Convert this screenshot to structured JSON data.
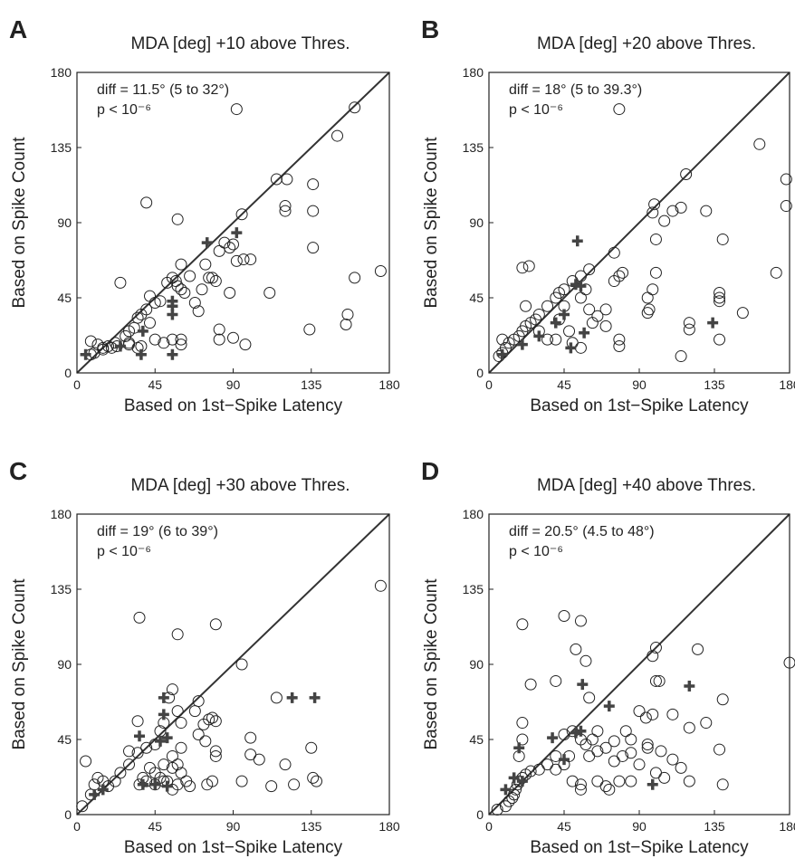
{
  "chart_data": [
    {
      "type": "scatter",
      "panel_label": "A",
      "title": "MDA [deg] +10 above Thres.",
      "x_label": "Based on 1st−Spike Latency",
      "y_label": "Based on Spike Count",
      "annotations": [
        "diff = 11.5° (5 to 32°)",
        "p < 10⁻⁶"
      ],
      "xlim": [
        0,
        180
      ],
      "ylim": [
        0,
        180
      ],
      "xticks": [
        0,
        45,
        90,
        135,
        180
      ],
      "yticks": [
        0,
        45,
        90,
        135,
        180
      ],
      "identity_line": true,
      "series": [
        {
          "marker": "circle",
          "color": "#222222",
          "x": [
            92,
            160,
            150,
            115,
            121,
            136,
            120,
            120,
            136,
            95,
            40,
            58,
            136,
            175,
            111,
            160,
            156,
            155,
            134,
            97,
            82,
            82,
            90,
            60,
            55,
            45,
            60,
            50,
            37,
            35,
            30,
            20,
            18,
            12,
            8,
            8,
            10,
            15,
            22,
            28,
            30,
            33,
            35,
            37,
            40,
            42,
            45,
            48,
            52,
            55,
            57,
            58,
            60,
            60,
            62,
            65,
            68,
            70,
            72,
            74,
            76,
            78,
            80,
            82,
            85,
            88,
            90,
            92,
            96,
            100,
            88,
            25,
            15,
            42,
            30,
            23
          ],
          "y": [
            158,
            159,
            142,
            116,
            116,
            113,
            100,
            97,
            97,
            95,
            102,
            92,
            75,
            61,
            48,
            57,
            35,
            29,
            26,
            17,
            26,
            20,
            21,
            20,
            20,
            20,
            17,
            18,
            16,
            15,
            17,
            15,
            16,
            17,
            19,
            11,
            12,
            14,
            18,
            22,
            25,
            27,
            33,
            35,
            38,
            46,
            42,
            43,
            54,
            57,
            55,
            52,
            65,
            50,
            48,
            58,
            42,
            37,
            50,
            65,
            57,
            57,
            55,
            73,
            78,
            75,
            77,
            67,
            68,
            68,
            48,
            54,
            15,
            30,
            18,
            16
          ]
        },
        {
          "marker": "plus",
          "color": "#444444",
          "x": [
            5,
            37,
            55,
            75,
            92,
            55,
            55,
            55,
            38,
            25
          ],
          "y": [
            11,
            11,
            11,
            78,
            84,
            35,
            40,
            43,
            25,
            16
          ]
        }
      ]
    },
    {
      "type": "scatter",
      "panel_label": "B",
      "title": "MDA [deg] +20 above Thres.",
      "x_label": "Based on 1st−Spike Latency",
      "y_label": "Based on Spike Count",
      "annotations": [
        "diff = 18° (5 to 39.3°)",
        "p < 10⁻⁶"
      ],
      "xlim": [
        0,
        180
      ],
      "ylim": [
        0,
        180
      ],
      "xticks": [
        0,
        45,
        90,
        135,
        180
      ],
      "yticks": [
        0,
        45,
        90,
        135,
        180
      ],
      "identity_line": true,
      "series": [
        {
          "marker": "circle",
          "color": "#222222",
          "x": [
            78,
            162,
            118,
            178,
            178,
            99,
            98,
            105,
            110,
            115,
            130,
            140,
            100,
            75,
            60,
            55,
            50,
            45,
            42,
            40,
            35,
            30,
            28,
            25,
            22,
            20,
            18,
            15,
            12,
            10,
            8,
            6,
            22,
            20,
            24,
            78,
            80,
            75,
            70,
            65,
            60,
            62,
            70,
            78,
            78,
            48,
            40,
            35,
            50,
            55,
            100,
            98,
            95,
            96,
            95,
            120,
            120,
            138,
            138,
            138,
            152,
            115,
            138,
            172,
            8,
            30,
            42,
            45,
            55,
            58
          ],
          "y": [
            158,
            137,
            119,
            116,
            100,
            101,
            96,
            91,
            97,
            99,
            97,
            80,
            80,
            72,
            62,
            58,
            55,
            50,
            48,
            45,
            40,
            35,
            32,
            30,
            28,
            25,
            22,
            20,
            18,
            15,
            12,
            10,
            40,
            63,
            64,
            58,
            60,
            55,
            38,
            34,
            38,
            30,
            28,
            20,
            16,
            25,
            20,
            20,
            18,
            15,
            60,
            50,
            45,
            38,
            36,
            30,
            26,
            48,
            45,
            43,
            36,
            10,
            20,
            60,
            20,
            25,
            32,
            40,
            45,
            50
          ]
        },
        {
          "marker": "plus",
          "color": "#444444",
          "x": [
            53,
            52,
            55,
            57,
            49,
            134,
            8,
            40,
            20,
            30,
            45
          ],
          "y": [
            79,
            53,
            52,
            24,
            15,
            30,
            11,
            30,
            17,
            22,
            35
          ]
        }
      ]
    },
    {
      "type": "scatter",
      "panel_label": "C",
      "title": "MDA [deg] +30 above Thres.",
      "x_label": "Based on 1st−Spike Latency",
      "y_label": "Based on Spike Count",
      "annotations": [
        "diff = 19° (6 to 39°)",
        "p < 10⁻⁶"
      ],
      "xlim": [
        0,
        180
      ],
      "ylim": [
        0,
        180
      ],
      "xticks": [
        0,
        45,
        90,
        135,
        180
      ],
      "yticks": [
        0,
        45,
        90,
        135,
        180
      ],
      "identity_line": true,
      "series": [
        {
          "marker": "circle",
          "color": "#222222",
          "x": [
            175,
            36,
            80,
            58,
            95,
            115,
            100,
            100,
            105,
            120,
            135,
            136,
            138,
            125,
            112,
            95,
            78,
            75,
            65,
            80,
            80,
            80,
            78,
            76,
            73,
            70,
            68,
            70,
            74,
            60,
            58,
            55,
            53,
            50,
            48,
            45,
            40,
            35,
            35,
            30,
            30,
            25,
            22,
            18,
            15,
            12,
            10,
            5,
            3,
            8,
            40,
            45,
            50,
            55,
            58,
            60,
            58,
            55,
            50,
            45,
            42,
            38,
            36,
            52,
            48,
            55,
            63,
            60
          ],
          "y": [
            137,
            118,
            114,
            108,
            90,
            70,
            46,
            36,
            33,
            30,
            40,
            22,
            20,
            18,
            17,
            20,
            20,
            18,
            17,
            35,
            38,
            56,
            58,
            57,
            54,
            68,
            62,
            48,
            44,
            55,
            62,
            75,
            70,
            55,
            50,
            42,
            40,
            56,
            37,
            30,
            38,
            25,
            20,
            17,
            20,
            22,
            18,
            32,
            5,
            12,
            20,
            18,
            20,
            15,
            18,
            25,
            30,
            35,
            30,
            25,
            28,
            22,
            18,
            20,
            22,
            28,
            20,
            40
          ]
        },
        {
          "marker": "plus",
          "color": "#444444",
          "x": [
            124,
            137,
            50,
            50,
            36,
            48,
            52,
            38,
            45,
            52,
            15,
            10
          ],
          "y": [
            70,
            70,
            70,
            60,
            47,
            44,
            46,
            18,
            18,
            17,
            15,
            12
          ]
        }
      ]
    },
    {
      "type": "scatter",
      "panel_label": "D",
      "title": "MDA [deg] +40 above Thres.",
      "x_label": "Based on 1st−Spike Latency",
      "y_label": "Based on Spike Count",
      "annotations": [
        "diff = 20.5° (4.5 to 48°)",
        "p < 10⁻⁶"
      ],
      "xlim": [
        0,
        180
      ],
      "ylim": [
        0,
        180
      ],
      "xticks": [
        0,
        45,
        90,
        135,
        180
      ],
      "yticks": [
        0,
        45,
        90,
        135,
        180
      ],
      "identity_line": true,
      "series": [
        {
          "marker": "circle",
          "color": "#222222",
          "x": [
            180,
            45,
            55,
            20,
            125,
            100,
            98,
            58,
            52,
            60,
            40,
            25,
            100,
            102,
            98,
            94,
            90,
            140,
            130,
            120,
            110,
            138,
            140,
            120,
            115,
            110,
            103,
            95,
            90,
            85,
            80,
            75,
            78,
            85,
            70,
            72,
            65,
            55,
            55,
            50,
            45,
            40,
            35,
            30,
            25,
            22,
            20,
            18,
            17,
            16,
            15,
            14,
            12,
            10,
            5,
            20,
            18,
            20,
            45,
            50,
            55,
            58,
            62,
            65,
            65,
            60,
            70,
            75,
            82,
            85,
            95,
            100,
            105,
            48,
            40
          ],
          "y": [
            91,
            119,
            116,
            114,
            99,
            100,
            95,
            92,
            99,
            70,
            80,
            78,
            80,
            80,
            60,
            58,
            62,
            69,
            55,
            52,
            60,
            39,
            18,
            20,
            28,
            33,
            38,
            40,
            30,
            37,
            35,
            32,
            20,
            20,
            17,
            15,
            20,
            18,
            15,
            20,
            30,
            35,
            30,
            27,
            26,
            24,
            22,
            20,
            18,
            15,
            12,
            10,
            8,
            5,
            3,
            55,
            35,
            45,
            48,
            50,
            45,
            42,
            45,
            50,
            38,
            35,
            40,
            44,
            50,
            45,
            42,
            25,
            22,
            35,
            27
          ]
        },
        {
          "marker": "plus",
          "color": "#444444",
          "x": [
            18,
            38,
            45,
            52,
            55,
            56,
            72,
            120,
            98,
            20,
            10,
            15
          ],
          "y": [
            40,
            46,
            33,
            49,
            50,
            78,
            65,
            77,
            18,
            20,
            15,
            22
          ]
        }
      ]
    }
  ]
}
